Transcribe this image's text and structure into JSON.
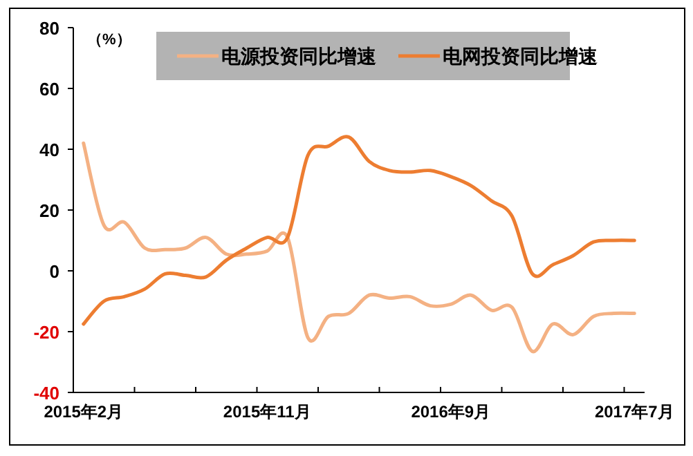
{
  "chart_data": {
    "type": "line",
    "categories": [
      "2015年2月",
      null,
      null,
      null,
      null,
      null,
      null,
      null,
      null,
      "2015年11月",
      null,
      null,
      null,
      null,
      null,
      null,
      null,
      null,
      "2016年9月",
      null,
      null,
      null,
      null,
      null,
      null,
      null,
      null,
      "2017年7月"
    ],
    "series": [
      {
        "name": "电源投资同比增速",
        "color": "#f4b183",
        "values": [
          42,
          15,
          16,
          7.5,
          7,
          7.5,
          11,
          5.5,
          5.5,
          6.5,
          11,
          -22,
          -15,
          -14,
          -8,
          -9,
          -8.5,
          -11.5,
          -11,
          -8,
          -13,
          -12,
          -26.5,
          -17.5,
          -21,
          -15,
          -14,
          -14
        ]
      },
      {
        "name": "电网投资同比增速",
        "color": "#ed7d31",
        "values": [
          -17.5,
          -10,
          -8.5,
          -6,
          -1,
          -1.5,
          -2,
          3.5,
          7.5,
          11,
          11,
          38,
          41,
          44,
          36,
          33,
          32.5,
          33,
          31,
          28,
          23,
          18,
          -1,
          2,
          5,
          9.5,
          10,
          10
        ]
      }
    ],
    "ylim": [
      -40,
      80
    ],
    "yticks": [
      -40,
      -20,
      0,
      20,
      40,
      60,
      80
    ],
    "annotations": [
      "（%）"
    ],
    "legend": "top"
  }
}
